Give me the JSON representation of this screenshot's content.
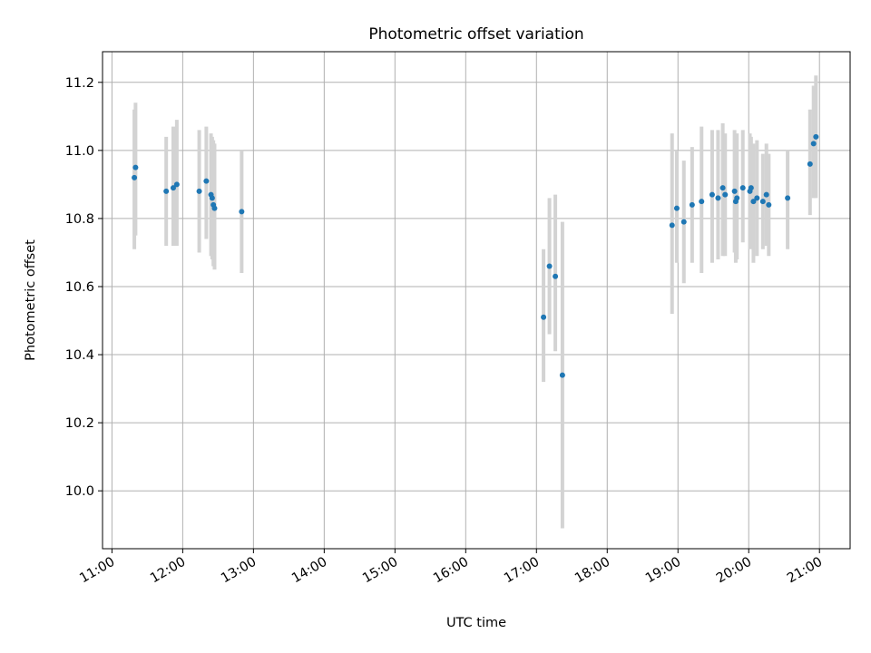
{
  "chart_data": {
    "type": "scatter",
    "title": "Photometric offset variation",
    "xlabel": "UTC time",
    "ylabel": "Photometric offset",
    "xlim": [
      "10:52",
      "21:26"
    ],
    "ylim": [
      9.83,
      11.29
    ],
    "x_ticks": [
      "11:00",
      "12:00",
      "13:00",
      "14:00",
      "15:00",
      "16:00",
      "17:00",
      "18:00",
      "19:00",
      "20:00",
      "21:00"
    ],
    "y_ticks": [
      10.0,
      10.2,
      10.4,
      10.6,
      10.8,
      11.0,
      11.2
    ],
    "grid": true,
    "colors": {
      "point": "#1f77b4",
      "errorbar": "#d3d3d3",
      "grid": "#b0b0b0"
    },
    "series": [
      {
        "points": [
          {
            "x": "11:19",
            "y": 10.92,
            "err_low": 10.71,
            "err_high": 11.12
          },
          {
            "x": "11:20",
            "y": 10.95,
            "err_low": 10.75,
            "err_high": 11.14
          },
          {
            "x": "11:46",
            "y": 10.88,
            "err_low": 10.72,
            "err_high": 11.04
          },
          {
            "x": "11:52",
            "y": 10.89,
            "err_low": 10.72,
            "err_high": 11.07
          },
          {
            "x": "11:55",
            "y": 10.9,
            "err_low": 10.72,
            "err_high": 11.09
          },
          {
            "x": "12:14",
            "y": 10.88,
            "err_low": 10.7,
            "err_high": 11.06
          },
          {
            "x": "12:20",
            "y": 10.91,
            "err_low": 10.74,
            "err_high": 11.07
          },
          {
            "x": "12:24",
            "y": 10.87,
            "err_low": 10.69,
            "err_high": 11.05
          },
          {
            "x": "12:25",
            "y": 10.86,
            "err_low": 10.68,
            "err_high": 11.04
          },
          {
            "x": "12:26",
            "y": 10.84,
            "err_low": 10.66,
            "err_high": 11.03
          },
          {
            "x": "12:27",
            "y": 10.83,
            "err_low": 10.65,
            "err_high": 11.02
          },
          {
            "x": "12:50",
            "y": 10.82,
            "err_low": 10.64,
            "err_high": 11.0
          },
          {
            "x": "17:06",
            "y": 10.51,
            "err_low": 10.32,
            "err_high": 10.71
          },
          {
            "x": "17:11",
            "y": 10.66,
            "err_low": 10.46,
            "err_high": 10.86
          },
          {
            "x": "17:16",
            "y": 10.63,
            "err_low": 10.41,
            "err_high": 10.87
          },
          {
            "x": "17:22",
            "y": 10.34,
            "err_low": 9.89,
            "err_high": 10.79
          },
          {
            "x": "18:55",
            "y": 10.78,
            "err_low": 10.52,
            "err_high": 11.05
          },
          {
            "x": "18:59",
            "y": 10.83,
            "err_low": 10.67,
            "err_high": 11.0
          },
          {
            "x": "19:05",
            "y": 10.79,
            "err_low": 10.61,
            "err_high": 10.97
          },
          {
            "x": "19:12",
            "y": 10.84,
            "err_low": 10.67,
            "err_high": 11.01
          },
          {
            "x": "19:20",
            "y": 10.85,
            "err_low": 10.64,
            "err_high": 11.07
          },
          {
            "x": "19:29",
            "y": 10.87,
            "err_low": 10.67,
            "err_high": 11.06
          },
          {
            "x": "19:34",
            "y": 10.86,
            "err_low": 10.68,
            "err_high": 11.06
          },
          {
            "x": "19:38",
            "y": 10.89,
            "err_low": 10.69,
            "err_high": 11.08
          },
          {
            "x": "19:40",
            "y": 10.87,
            "err_low": 10.69,
            "err_high": 11.05
          },
          {
            "x": "19:48",
            "y": 10.88,
            "err_low": 10.7,
            "err_high": 11.06
          },
          {
            "x": "19:49",
            "y": 10.85,
            "err_low": 10.67,
            "err_high": 11.04
          },
          {
            "x": "19:50",
            "y": 10.86,
            "err_low": 10.68,
            "err_high": 11.05
          },
          {
            "x": "19:55",
            "y": 10.89,
            "err_low": 10.73,
            "err_high": 11.06
          },
          {
            "x": "20:01",
            "y": 10.88,
            "err_low": 10.71,
            "err_high": 11.05
          },
          {
            "x": "20:02",
            "y": 10.89,
            "err_low": 10.72,
            "err_high": 11.04
          },
          {
            "x": "20:04",
            "y": 10.85,
            "err_low": 10.67,
            "err_high": 11.02
          },
          {
            "x": "20:07",
            "y": 10.86,
            "err_low": 10.69,
            "err_high": 11.03
          },
          {
            "x": "20:12",
            "y": 10.85,
            "err_low": 10.71,
            "err_high": 10.99
          },
          {
            "x": "20:15",
            "y": 10.87,
            "err_low": 10.72,
            "err_high": 11.02
          },
          {
            "x": "20:17",
            "y": 10.84,
            "err_low": 10.69,
            "err_high": 10.99
          },
          {
            "x": "20:33",
            "y": 10.86,
            "err_low": 10.71,
            "err_high": 11.0
          },
          {
            "x": "20:52",
            "y": 10.96,
            "err_low": 10.81,
            "err_high": 11.12
          },
          {
            "x": "20:55",
            "y": 11.02,
            "err_low": 10.86,
            "err_high": 11.19
          },
          {
            "x": "20:57",
            "y": 11.04,
            "err_low": 10.86,
            "err_high": 11.22
          }
        ]
      }
    ]
  }
}
